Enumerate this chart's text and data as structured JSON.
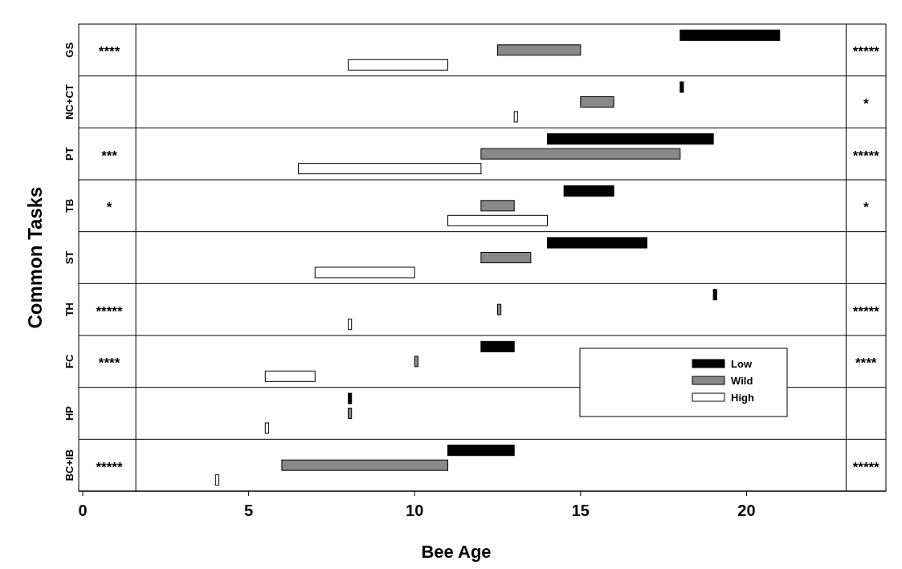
{
  "chart_data": {
    "type": "bar",
    "orientation": "horizontal",
    "xlabel": "Bee Age",
    "ylabel": "Common Tasks",
    "categories": [
      "GS",
      "NC+CT",
      "PT",
      "TB",
      "ST",
      "TH",
      "FC",
      "HP",
      "BC+IB"
    ],
    "series": [
      {
        "name": "Low",
        "color": "#000000",
        "base": [
          18,
          18,
          14,
          14.5,
          14,
          19,
          12,
          8,
          11
        ],
        "values": [
          3,
          0.1,
          5,
          1.5,
          3,
          0.1,
          1,
          0.1,
          2
        ]
      },
      {
        "name": "Wild",
        "color": "#888888",
        "base": [
          12.5,
          15,
          12,
          12,
          12,
          12.5,
          10,
          8,
          6
        ],
        "values": [
          2.5,
          1,
          6,
          1,
          1.5,
          0.1,
          0.1,
          0.1,
          5
        ]
      },
      {
        "name": "High",
        "color": "#ffffff",
        "base": [
          8,
          13,
          6.5,
          11,
          7,
          8,
          5.5,
          5.5,
          4
        ],
        "values": [
          3,
          0.1,
          5.5,
          3,
          3,
          0.1,
          1.5,
          0.1,
          0.1
        ]
      }
    ],
    "xlim": [
      0,
      24.2
    ],
    "xticks": [
      0,
      5,
      10,
      15,
      20
    ],
    "grid": "y",
    "legend": "bottom right",
    "ref_lines": [
      {
        "axis": "x",
        "value": 1.6
      },
      {
        "axis": "x",
        "value": 23
      }
    ],
    "annotations": [
      "****",
      "*****",
      "*",
      "***",
      "*****",
      "*",
      "*",
      "*****",
      "*****",
      "****",
      "****",
      "*****",
      "*****"
    ]
  }
}
